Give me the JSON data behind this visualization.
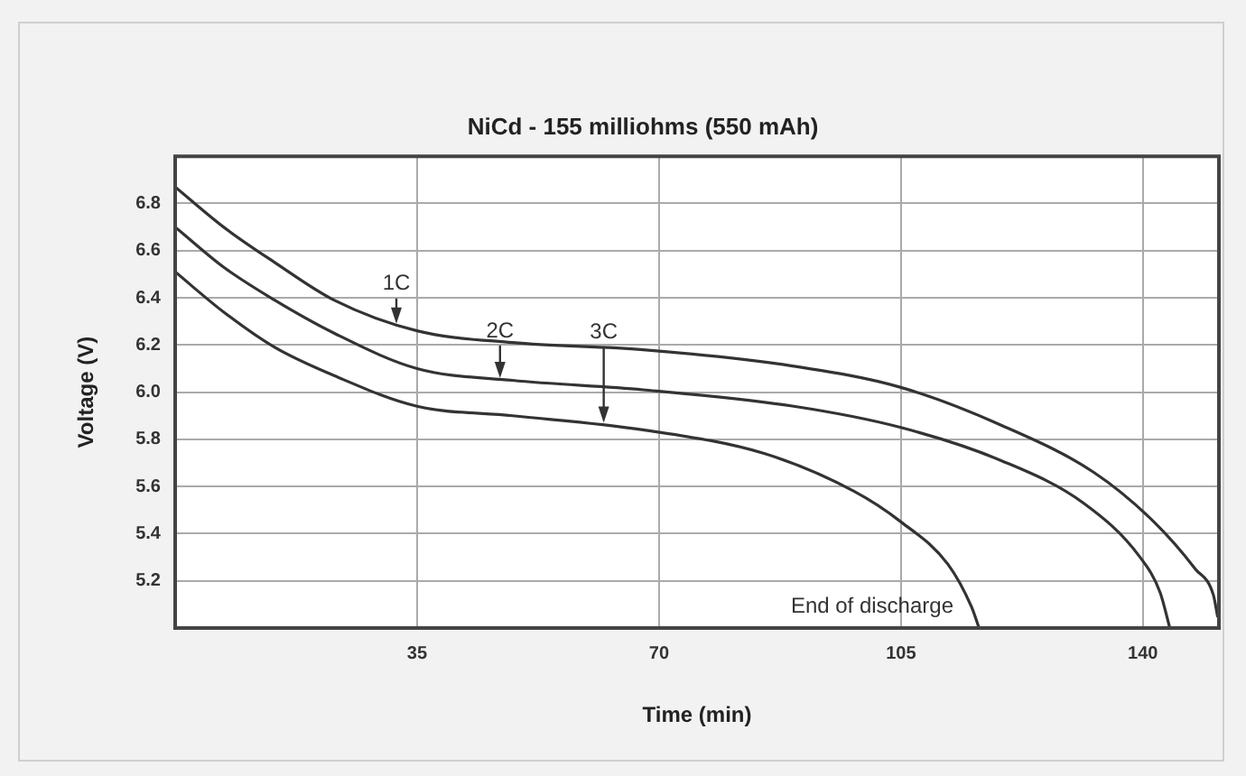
{
  "chart_data": {
    "type": "line",
    "title": "NiCd - 155 milliohms (550 mAh)",
    "xlabel": "Time (min)",
    "ylabel": "Voltage (V)",
    "xlim": [
      0,
      151
    ],
    "xticks": [
      35,
      70,
      105,
      140
    ],
    "ylim": [
      5.0,
      7.0
    ],
    "yticks": [
      5.2,
      5.4,
      5.6,
      5.8,
      {
        "value": 6.0,
        "label": "6.0"
      },
      6.2,
      6.4,
      6.6,
      6.8
    ],
    "grid": true,
    "legend": false,
    "marker": "none",
    "line_style": "solid",
    "series": [
      {
        "color": "#333333",
        "x": [
          0,
          7,
          14.4,
          23,
          35,
          48.8,
          67.7,
          89.5,
          105,
          119.5,
          132.9,
          141.6,
          147.6,
          150.2,
          150.8
        ],
        "values": [
          6.87,
          6.7,
          6.55,
          6.39,
          6.26,
          6.21,
          6.18,
          6.11,
          6.02,
          5.86,
          5.66,
          5.45,
          5.25,
          5.14,
          5.05
        ]
      },
      {
        "color": "#333333",
        "x": [
          0,
          7,
          14.4,
          23,
          35,
          48.8,
          67.7,
          89.5,
          105,
          119.5,
          131.4,
          139.6,
          142.5,
          143.9
        ],
        "values": [
          6.7,
          6.53,
          6.39,
          6.25,
          6.1,
          6.05,
          6.01,
          5.94,
          5.85,
          5.71,
          5.53,
          5.3,
          5.15,
          5.0
        ]
      },
      {
        "color": "#333333",
        "x": [
          0,
          7,
          14.4,
          23,
          35,
          48.8,
          67.7,
          85.2,
          98.2,
          105,
          111.8,
          115.2,
          116.3
        ],
        "values": [
          6.51,
          6.34,
          6.19,
          6.07,
          5.94,
          5.9,
          5.84,
          5.74,
          5.58,
          5.45,
          5.27,
          5.09,
          5.0
        ]
      }
    ],
    "annotations": [
      {
        "text": "1C",
        "x": 32,
        "y": 6.29
      },
      {
        "text": "2C",
        "x": 47,
        "y": 6.06
      },
      {
        "text": "3C",
        "x": 62,
        "y": 5.87
      },
      "End of discharge"
    ]
  }
}
